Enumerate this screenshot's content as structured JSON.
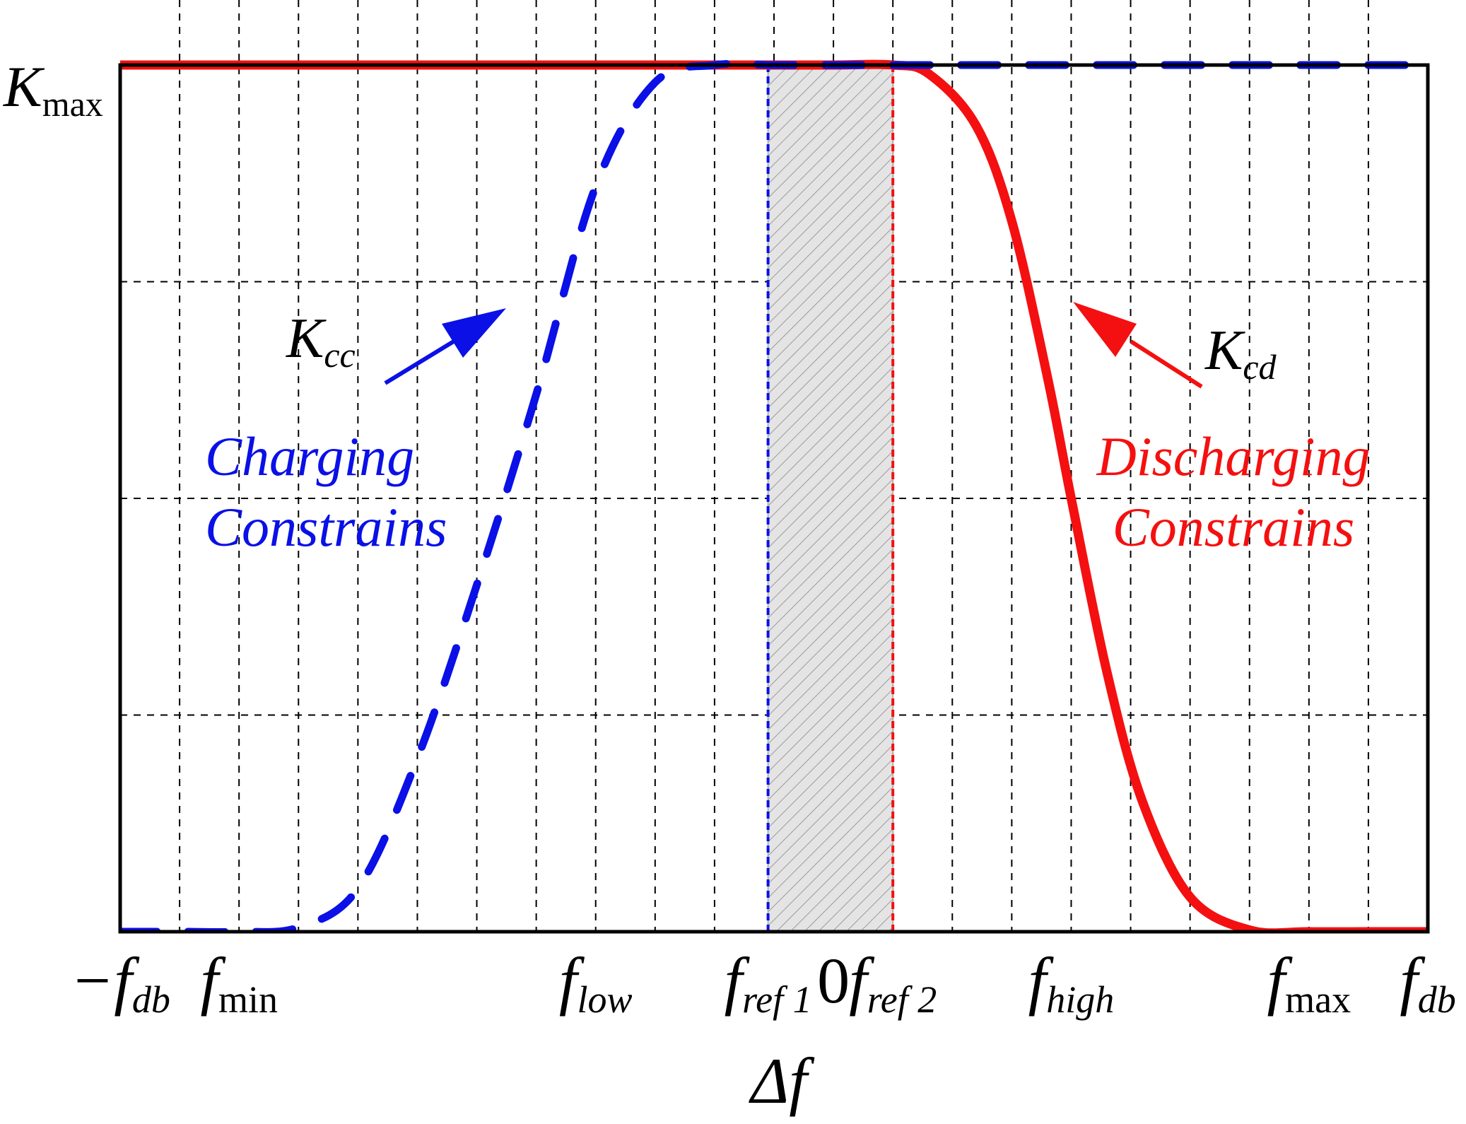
{
  "chart_data": {
    "type": "line",
    "title": "",
    "xlabel": "Δf",
    "ylabel": "",
    "xlim": [
      -6,
      5
    ],
    "ylim": [
      0,
      1
    ],
    "grid": true,
    "x_ticks": [
      {
        "value": -6,
        "main": "−f",
        "sub": "db"
      },
      {
        "value": -5,
        "main": "f",
        "sub": "min"
      },
      {
        "value": -2,
        "main": "f",
        "sub": "low"
      },
      {
        "value": -0.55,
        "main": "f",
        "sub": "ref 1"
      },
      {
        "value": 0,
        "main": "0",
        "sub": ""
      },
      {
        "value": 0.5,
        "main": "f",
        "sub": "ref 2"
      },
      {
        "value": 2,
        "main": "f",
        "sub": "high"
      },
      {
        "value": 4,
        "main": "f",
        "sub": "max"
      },
      {
        "value": 5,
        "main": "f",
        "sub": "db"
      }
    ],
    "y_ticks": [
      {
        "value": 1,
        "main": "K",
        "sub": "max"
      }
    ],
    "shaded_band": {
      "from": -0.55,
      "to": 0.5
    },
    "series": [
      {
        "name": "K_cc (Charging Constrains)",
        "color": "#0a10e6",
        "style": "dashed",
        "x": [
          -6,
          -5.5,
          -5,
          -4.5,
          -4,
          -3.5,
          -3,
          -2.5,
          -2,
          -1.5,
          -1,
          -0.5,
          0,
          1,
          2,
          3,
          4,
          5
        ],
        "y": [
          0,
          0,
          0,
          0.005,
          0.05,
          0.2,
          0.4,
          0.62,
          0.86,
          0.98,
          1,
          1,
          1,
          1,
          1,
          1,
          1,
          1
        ]
      },
      {
        "name": "K_cd (Discharging Constrains)",
        "color": "#f41010",
        "style": "solid",
        "x": [
          -6,
          -4,
          -2,
          -0.5,
          0,
          0.5,
          0.8,
          1.2,
          1.5,
          1.8,
          2,
          2.3,
          2.6,
          3,
          3.5,
          4,
          4.5,
          5
        ],
        "y": [
          1,
          1,
          1,
          1,
          1,
          1,
          0.99,
          0.93,
          0.82,
          0.64,
          0.5,
          0.3,
          0.15,
          0.04,
          0.002,
          0,
          0,
          0
        ]
      }
    ],
    "annotations": [
      {
        "id": "kcc",
        "main": "K",
        "sub": "cc",
        "color": "#000000"
      },
      {
        "id": "kcd",
        "main": "K",
        "sub": "cd",
        "color": "#000000"
      },
      {
        "id": "charging",
        "lines": [
          "Charging",
          "Constrains"
        ],
        "color": "#0a10e6"
      },
      {
        "id": "discharging",
        "lines": [
          "Discharging",
          "Constrains"
        ],
        "color": "#f41010"
      }
    ]
  }
}
